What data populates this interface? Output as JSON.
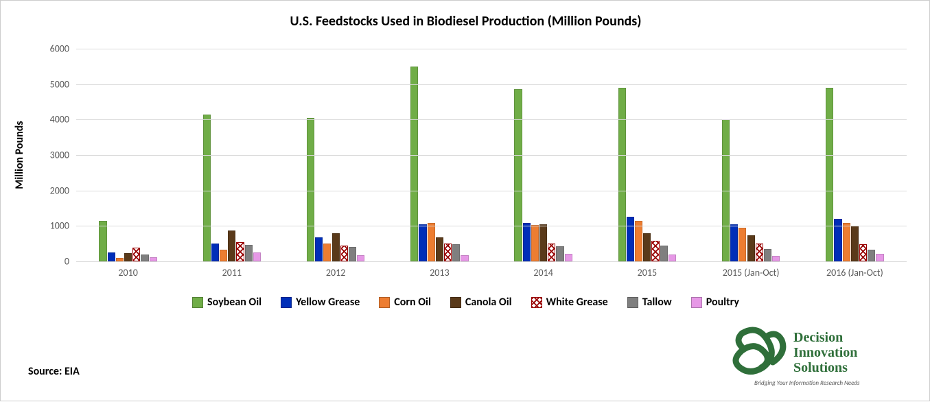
{
  "chart": {
    "type": "bar",
    "title": "U.S. Feedstocks Used in Biodiesel Production (Million Pounds)",
    "title_fontsize": 20,
    "ylabel": "Million Pounds",
    "ylabel_fontsize": 16,
    "source": "Source: EIA",
    "source_fontsize": 16,
    "background_color": "#ffffff",
    "grid_color": "#d9d9d9",
    "tick_fontsize": 14,
    "tick_color": "#595959",
    "legend_fontsize": 16,
    "ylim": [
      0,
      6000
    ],
    "ytick_step": 1000,
    "categories": [
      "2010",
      "2011",
      "2012",
      "2013",
      "2014",
      "2015",
      "2015 (Jan-Oct)",
      "2016 (Jan-Oct)"
    ],
    "series": [
      {
        "name": "Soybean Oil",
        "color": "#70ad47",
        "pattern": "solid",
        "values": [
          1150,
          4150,
          4050,
          5500,
          4850,
          4900,
          4000,
          4900
        ]
      },
      {
        "name": "Yellow Grease",
        "color": "#002eb8",
        "pattern": "solid",
        "values": [
          250,
          500,
          680,
          1050,
          1080,
          1250,
          1050,
          1200
        ]
      },
      {
        "name": "Corn Oil",
        "color": "#ed7d31",
        "pattern": "solid",
        "values": [
          100,
          320,
          500,
          1080,
          1020,
          1150,
          950,
          1080
        ]
      },
      {
        "name": "Canola Oil",
        "color": "#5a3a1a",
        "pattern": "solid",
        "values": [
          230,
          870,
          800,
          680,
          1050,
          800,
          730,
          1000
        ]
      },
      {
        "name": "White Grease",
        "color": "#ffffff",
        "pattern": "xhatch",
        "values": [
          380,
          550,
          450,
          500,
          500,
          580,
          500,
          480
        ]
      },
      {
        "name": "Tallow",
        "color": "#7f7f7f",
        "pattern": "solid",
        "values": [
          200,
          470,
          400,
          480,
          420,
          450,
          350,
          320
        ]
      },
      {
        "name": "Poultry",
        "color": "#e698e6",
        "pattern": "solid",
        "values": [
          120,
          250,
          180,
          180,
          220,
          200,
          160,
          220
        ]
      }
    ],
    "bar_gap_within_group": 1,
    "bar_group_padding": 0.22
  },
  "logo": {
    "company": "Decision Innovation Solutions",
    "tagline": "Bridging Your Information Research Needs",
    "brand_color": "#2f6f3a"
  }
}
